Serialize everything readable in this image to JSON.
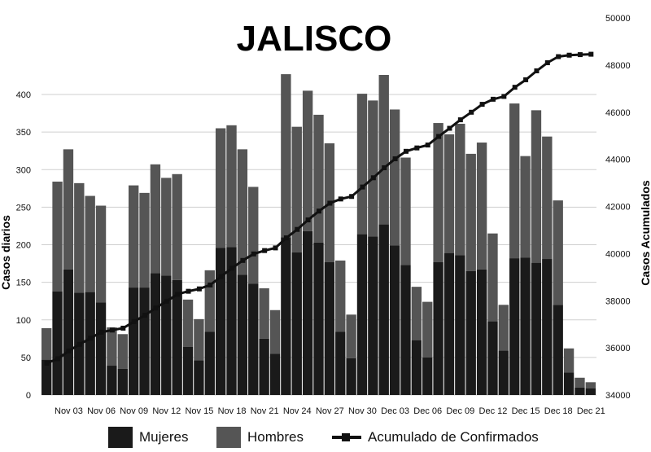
{
  "chart_data": {
    "type": "bar",
    "title": "JALISCO",
    "ylabel_left": "Casos diarios",
    "ylabel_right": "Casos Acumulados",
    "ylim_left": [
      0,
      450
    ],
    "ylim_right": [
      34000,
      50000
    ],
    "yticks_left": [
      "0",
      "50",
      "100",
      "150",
      "200",
      "250",
      "300",
      "350",
      "400"
    ],
    "yticks_right": [
      "34000",
      "36000",
      "38000",
      "40000",
      "42000",
      "44000",
      "46000",
      "48000",
      "50000"
    ],
    "xtick_labels": [
      "Nov 03",
      "Nov 06",
      "Nov 09",
      "Nov 12",
      "Nov 15",
      "Nov 18",
      "Nov 21",
      "Nov 24",
      "Nov 27",
      "Nov 30",
      "Dec 03",
      "Dec 06",
      "Dec 09",
      "Dec 12",
      "Dec 15",
      "Dec 18",
      "Dec 21"
    ],
    "categories": [
      "Nov 01",
      "Nov 02",
      "Nov 03",
      "Nov 04",
      "Nov 05",
      "Nov 06",
      "Nov 07",
      "Nov 08",
      "Nov 09",
      "Nov 10",
      "Nov 11",
      "Nov 12",
      "Nov 13",
      "Nov 14",
      "Nov 15",
      "Nov 16",
      "Nov 17",
      "Nov 18",
      "Nov 19",
      "Nov 20",
      "Nov 21",
      "Nov 22",
      "Nov 23",
      "Nov 24",
      "Nov 25",
      "Nov 26",
      "Nov 27",
      "Nov 28",
      "Nov 29",
      "Nov 30",
      "Dec 01",
      "Dec 02",
      "Dec 03",
      "Dec 04",
      "Dec 05",
      "Dec 06",
      "Dec 07",
      "Dec 08",
      "Dec 09",
      "Dec 10",
      "Dec 11",
      "Dec 12",
      "Dec 13",
      "Dec 14",
      "Dec 15",
      "Dec 16",
      "Dec 17",
      "Dec 18",
      "Dec 19",
      "Dec 20",
      "Dec 21"
    ],
    "series": [
      {
        "name": "Mujeres",
        "color": "#1a1a1a",
        "axis": "left",
        "stack": true,
        "values": [
          47,
          138,
          167,
          136,
          137,
          123,
          39,
          35,
          143,
          143,
          162,
          159,
          153,
          64,
          46,
          84,
          196,
          197,
          160,
          148,
          75,
          55,
          210,
          190,
          218,
          203,
          177,
          84,
          49,
          214,
          211,
          227,
          199,
          173,
          73,
          50,
          177,
          189,
          186,
          165,
          167,
          98,
          59,
          182,
          183,
          176,
          181,
          120,
          30,
          10,
          9
        ]
      },
      {
        "name": "Hombres",
        "color": "#555555",
        "axis": "left",
        "stack": true,
        "values": [
          42,
          146,
          160,
          146,
          128,
          129,
          51,
          46,
          136,
          126,
          145,
          130,
          141,
          63,
          55,
          82,
          159,
          162,
          167,
          129,
          67,
          58,
          217,
          167,
          187,
          170,
          158,
          95,
          58,
          187,
          181,
          199,
          181,
          143,
          71,
          74,
          185,
          158,
          175,
          156,
          169,
          117,
          61,
          206,
          135,
          203,
          163,
          139,
          32,
          13,
          8
        ]
      },
      {
        "name": "Acumulado de Confirmados",
        "color": "#111111",
        "axis": "right",
        "type": "line",
        "values": [
          35350,
          35539,
          35866,
          36148,
          36413,
          36665,
          36755,
          36836,
          37115,
          37384,
          37691,
          37980,
          38274,
          38401,
          38502,
          38668,
          39023,
          39382,
          39709,
          39986,
          40128,
          40241,
          40668,
          41025,
          41430,
          41803,
          42138,
          42317,
          42424,
          42825,
          43217,
          43643,
          44023,
          44339,
          44483,
          44607,
          44969,
          45316,
          45677,
          45998,
          46334,
          46549,
          46669,
          47057,
          47375,
          47754,
          48098,
          48357,
          48419,
          48442,
          48459
        ]
      }
    ],
    "legend": {
      "position": "bottom",
      "entries": [
        "Mujeres",
        "Hombres",
        "Acumulado de Confirmados"
      ]
    },
    "grid": true
  }
}
